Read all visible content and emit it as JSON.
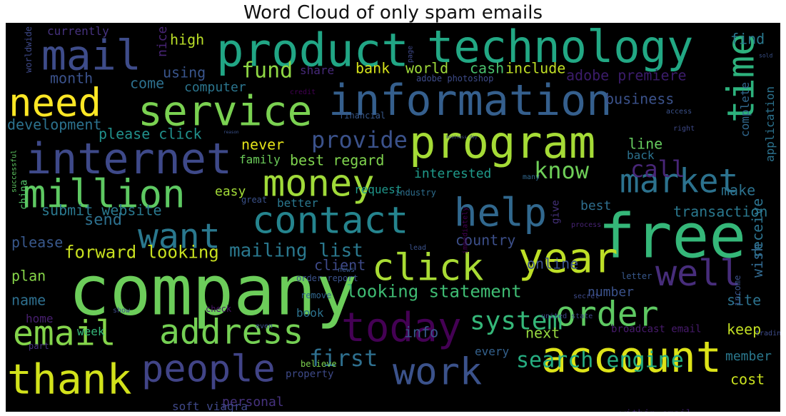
{
  "title": "Word Cloud of only spam emails",
  "words": [
    {
      "text": "company",
      "color": "#6ccd5a"
    },
    {
      "text": "free",
      "color": "#35b779"
    },
    {
      "text": "product",
      "color": "#21a685"
    },
    {
      "text": "technology",
      "color": "#22a884"
    },
    {
      "text": "mail",
      "color": "#3e4c8a"
    },
    {
      "text": "information",
      "color": "#355f8d"
    },
    {
      "text": "service",
      "color": "#7ad151"
    },
    {
      "text": "need",
      "color": "#fde725"
    },
    {
      "text": "program",
      "color": "#a5db36"
    },
    {
      "text": "internet",
      "color": "#3e4989"
    },
    {
      "text": "million",
      "color": "#5ec962"
    },
    {
      "text": "money",
      "color": "#a0da39"
    },
    {
      "text": "market",
      "color": "#2c728e"
    },
    {
      "text": "time",
      "color": "#2db27d"
    },
    {
      "text": "want",
      "color": "#2a788e"
    },
    {
      "text": "contact",
      "color": "#25848e"
    },
    {
      "text": "help",
      "color": "#31688e"
    },
    {
      "text": "year",
      "color": "#bddf26"
    },
    {
      "text": "click",
      "color": "#a8db34"
    },
    {
      "text": "well",
      "color": "#472d7b"
    },
    {
      "text": "order",
      "color": "#5ec962"
    },
    {
      "text": "email",
      "color": "#84d44b"
    },
    {
      "text": "address",
      "color": "#75d054"
    },
    {
      "text": "today",
      "color": "#440154"
    },
    {
      "text": "account",
      "color": "#dde318"
    },
    {
      "text": "thank",
      "color": "#d2e21b"
    },
    {
      "text": "people",
      "color": "#414487"
    },
    {
      "text": "work",
      "color": "#3b528b"
    },
    {
      "text": "system",
      "color": "#35b779"
    },
    {
      "text": "search engine",
      "color": "#26ad81"
    },
    {
      "text": "first",
      "color": "#2e6f8e"
    },
    {
      "text": "provide",
      "color": "#3b528b"
    },
    {
      "text": "know",
      "color": "#6ece58"
    },
    {
      "text": "call",
      "color": "#482677"
    },
    {
      "text": "fund",
      "color": "#8fd744"
    },
    {
      "text": "mailing list",
      "color": "#2a788e"
    },
    {
      "text": "forward looking",
      "color": "#c8e020"
    },
    {
      "text": "looking statement",
      "color": "#3fbc73"
    },
    {
      "text": "submit website",
      "color": "#2a788e"
    },
    {
      "text": "adobe premiere",
      "color": "#3b1c6a"
    },
    {
      "text": "business",
      "color": "#3b528b"
    },
    {
      "text": "world",
      "color": "#9fda3a"
    },
    {
      "text": "cash",
      "color": "#4ac16d"
    },
    {
      "text": "include",
      "color": "#c0df25"
    },
    {
      "text": "bank",
      "color": "#d5e21a"
    },
    {
      "text": "using",
      "color": "#39558c"
    },
    {
      "text": "month",
      "color": "#3b528b"
    },
    {
      "text": "high",
      "color": "#bade28"
    },
    {
      "text": "nice",
      "color": "#482475"
    },
    {
      "text": "currently",
      "color": "#46327e"
    },
    {
      "text": "worldwide",
      "color": "#3e4989"
    },
    {
      "text": "come",
      "color": "#2d708e"
    },
    {
      "text": "computer",
      "color": "#2b758e"
    },
    {
      "text": "share",
      "color": "#472a7a"
    },
    {
      "text": "development",
      "color": "#2c728e"
    },
    {
      "text": "please click",
      "color": "#21918c"
    },
    {
      "text": "never",
      "color": "#e5e419"
    },
    {
      "text": "family",
      "color": "#6ccd5a"
    },
    {
      "text": "best regard",
      "color": "#7fd34e"
    },
    {
      "text": "interested",
      "color": "#1f9a8a"
    },
    {
      "text": "industry",
      "color": "#2e6e8e"
    },
    {
      "text": "easy",
      "color": "#a2da37"
    },
    {
      "text": "great",
      "color": "#3b528b"
    },
    {
      "text": "better",
      "color": "#2a778e"
    },
    {
      "text": "request",
      "color": "#1f978b"
    },
    {
      "text": "china",
      "color": "#52c569"
    },
    {
      "text": "send",
      "color": "#2d708e"
    },
    {
      "text": "please",
      "color": "#38588c"
    },
    {
      "text": "country",
      "color": "#3c4f8a"
    },
    {
      "text": "online",
      "color": "#3b528b"
    },
    {
      "text": "client",
      "color": "#3e4a89"
    },
    {
      "text": "order report",
      "color": "#3b528b"
    },
    {
      "text": "plan",
      "color": "#86d549"
    },
    {
      "text": "name",
      "color": "#2e6f8e"
    },
    {
      "text": "home",
      "color": "#481f70"
    },
    {
      "text": "show",
      "color": "#3e4c8a"
    },
    {
      "text": "week",
      "color": "#35b779"
    },
    {
      "text": "part",
      "color": "#46327e"
    },
    {
      "text": "info",
      "color": "#38598c"
    },
    {
      "text": "next",
      "color": "#95d840"
    },
    {
      "text": "every",
      "color": "#34618d"
    },
    {
      "text": "believe",
      "color": "#7cd250"
    },
    {
      "text": "personal",
      "color": "#46327e"
    },
    {
      "text": "investment advice",
      "color": "#2a788e"
    },
    {
      "text": "soft viagra",
      "color": "#3f4889"
    },
    {
      "text": "database",
      "color": "#31688e"
    },
    {
      "text": "within email",
      "color": "#3b1c6a"
    },
    {
      "text": "cost",
      "color": "#cae11f"
    },
    {
      "text": "member",
      "color": "#2a788e"
    },
    {
      "text": "keep",
      "color": "#c2df23"
    },
    {
      "text": "site",
      "color": "#2c728e"
    },
    {
      "text": "number",
      "color": "#3b528b"
    },
    {
      "text": "transaction",
      "color": "#2a788e"
    },
    {
      "text": "make",
      "color": "#2c728e"
    },
    {
      "text": "line",
      "color": "#65cb5e"
    },
    {
      "text": "back",
      "color": "#2c728e"
    },
    {
      "text": "find",
      "color": "#2a788e"
    },
    {
      "text": "right",
      "color": "#3e4989"
    },
    {
      "text": "best",
      "color": "#2e6e8e"
    },
    {
      "text": "process",
      "color": "#482475"
    },
    {
      "text": "give",
      "color": "#46327e"
    },
    {
      "text": "many",
      "color": "#31688e"
    },
    {
      "text": "lead",
      "color": "#3b528b"
    },
    {
      "text": "immediately",
      "color": "#440154"
    },
    {
      "text": "receive",
      "color": "#2c728e"
    },
    {
      "text": "wish",
      "color": "#31688e"
    },
    {
      "text": "income",
      "color": "#3b528b"
    },
    {
      "text": "secret",
      "color": "#3e4a89"
    },
    {
      "text": "letter",
      "color": "#38588c"
    },
    {
      "text": "trading",
      "color": "#3e4c8a"
    },
    {
      "text": "broadcast email",
      "color": "#481b6d"
    },
    {
      "text": "united state",
      "color": "#3e4989"
    },
    {
      "text": "check",
      "color": "#481467"
    },
    {
      "text": "remove",
      "color": "#31688e"
    },
    {
      "text": "news",
      "color": "#38588c"
    },
    {
      "text": "book",
      "color": "#2c728e"
    },
    {
      "text": "even",
      "color": "#3b528b"
    },
    {
      "text": "property",
      "color": "#3e4a89"
    },
    {
      "text": "application",
      "color": "#2c728e"
    },
    {
      "text": "complete",
      "color": "#31688e"
    },
    {
      "text": "access",
      "color": "#3b528b"
    },
    {
      "text": "credit",
      "color": "#440154"
    },
    {
      "text": "financial",
      "color": "#38588c"
    },
    {
      "text": "adobe photoshop",
      "color": "#3e4c8a"
    },
    {
      "text": "page",
      "color": "#3e4989"
    },
    {
      "text": "reason",
      "color": "#3b528b"
    },
    {
      "text": "business day",
      "color": "#3e4989"
    },
    {
      "text": "successful",
      "color": "#5ec962"
    },
    {
      "text": "sold",
      "color": "#3b528b"
    }
  ]
}
